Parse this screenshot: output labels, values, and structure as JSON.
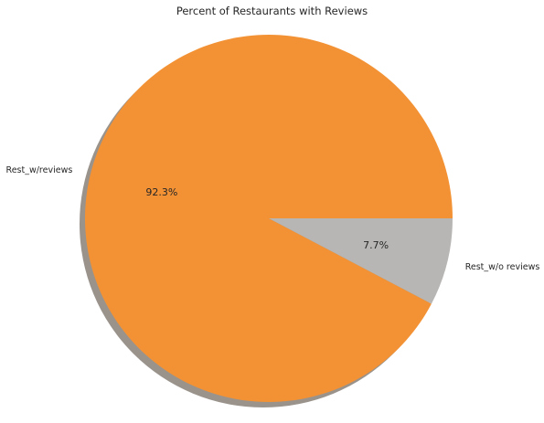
{
  "chart_data": {
    "type": "pie",
    "title": "Percent of Restaurants with Reviews",
    "categories": [
      "Rest_w/reviews",
      "Rest_w/o reviews"
    ],
    "values": [
      92.3,
      7.7
    ],
    "percent_labels": [
      "92.3%",
      "7.7%"
    ],
    "colors": [
      "#f39234",
      "#b7b6b4"
    ],
    "start_angle_deg": 0,
    "direction": "counterclockwise",
    "shadow": true,
    "legend": "none"
  }
}
